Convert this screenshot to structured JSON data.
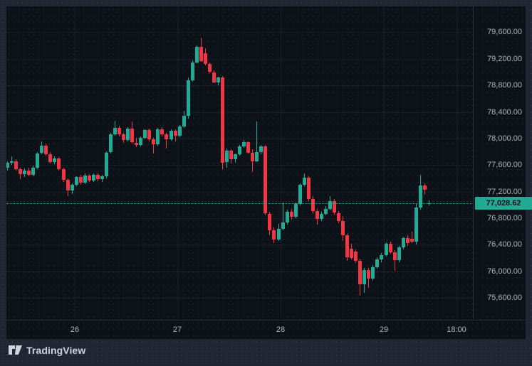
{
  "branding": {
    "logo_text": "TradingView"
  },
  "colors": {
    "up": "#22ab94",
    "down": "#f23645",
    "badge_bg": "#22ab94",
    "badge_text": "#0b0e14",
    "axis_text": "#b2b5be",
    "pane_bg": "#0d1118",
    "outer_bg": "#222633"
  },
  "chart_data": {
    "type": "candlestick",
    "title": "",
    "legend_position": "none",
    "grid": "dotted",
    "ylim": [
      75280,
      79990
    ],
    "y_axis": {
      "ticks": [
        {
          "label": "79,600.00",
          "value": 79600
        },
        {
          "label": "79,200.00",
          "value": 79200
        },
        {
          "label": "78,800.00",
          "value": 78800
        },
        {
          "label": "78,400.00",
          "value": 78400
        },
        {
          "label": "78,000.00",
          "value": 78000
        },
        {
          "label": "77,600.00",
          "value": 77600
        },
        {
          "label": "77,200.00",
          "value": 77200
        },
        {
          "label": "76,800.00",
          "value": 76800
        },
        {
          "label": "76,400.00",
          "value": 76400
        },
        {
          "label": "76,000.00",
          "value": 76000
        },
        {
          "label": "75,600.00",
          "value": 75600
        }
      ]
    },
    "x_axis": {
      "ticks": [
        {
          "label": "26",
          "x": 105
        },
        {
          "label": "27",
          "x": 249
        },
        {
          "label": "28",
          "x": 394
        },
        {
          "label": "29",
          "x": 539
        },
        {
          "label": "18:00",
          "x": 641
        }
      ]
    },
    "price_line": {
      "value": 77028.62,
      "label": "77,028.62"
    },
    "candles": [
      [
        77560,
        77660,
        77520,
        77640
      ],
      [
        77640,
        77730,
        77600,
        77660
      ],
      [
        77660,
        77690,
        77520,
        77540
      ],
      [
        77540,
        77560,
        77390,
        77460
      ],
      [
        77460,
        77550,
        77420,
        77520
      ],
      [
        77520,
        77560,
        77430,
        77450
      ],
      [
        77450,
        77590,
        77430,
        77560
      ],
      [
        77560,
        77800,
        77540,
        77780
      ],
      [
        77780,
        77960,
        77760,
        77890
      ],
      [
        77890,
        77920,
        77740,
        77760
      ],
      [
        77760,
        77800,
        77620,
        77650
      ],
      [
        77650,
        77730,
        77610,
        77700
      ],
      [
        77700,
        77720,
        77520,
        77540
      ],
      [
        77540,
        77560,
        77350,
        77380
      ],
      [
        77380,
        77400,
        77130,
        77220
      ],
      [
        77220,
        77330,
        77160,
        77300
      ],
      [
        77300,
        77430,
        77280,
        77420
      ],
      [
        77420,
        77450,
        77300,
        77330
      ],
      [
        77330,
        77470,
        77310,
        77440
      ],
      [
        77440,
        77460,
        77340,
        77370
      ],
      [
        77370,
        77480,
        77350,
        77450
      ],
      [
        77450,
        77470,
        77360,
        77390
      ],
      [
        77390,
        77450,
        77350,
        77430
      ],
      [
        77430,
        77810,
        77400,
        77790
      ],
      [
        77790,
        78090,
        77770,
        78060
      ],
      [
        78060,
        78270,
        78040,
        78160
      ],
      [
        78160,
        78190,
        78030,
        78060
      ],
      [
        78060,
        78090,
        77940,
        77980
      ],
      [
        77980,
        78170,
        77960,
        78150
      ],
      [
        78150,
        78260,
        77920,
        77940
      ],
      [
        77940,
        78010,
        77870,
        77900
      ],
      [
        77900,
        78030,
        77880,
        78010
      ],
      [
        78010,
        78140,
        77990,
        78130
      ],
      [
        78130,
        78150,
        77960,
        77990
      ],
      [
        77990,
        78010,
        77770,
        77910
      ],
      [
        77910,
        78160,
        77890,
        78140
      ],
      [
        78140,
        78170,
        78030,
        78060
      ],
      [
        78060,
        78080,
        77850,
        77990
      ],
      [
        77990,
        78140,
        77970,
        78120
      ],
      [
        78120,
        78140,
        77950,
        78040
      ],
      [
        78040,
        78200,
        78020,
        78180
      ],
      [
        78180,
        78420,
        78160,
        78340
      ],
      [
        78340,
        78920,
        78300,
        78880
      ],
      [
        78880,
        79180,
        78850,
        79150
      ],
      [
        79150,
        79400,
        79130,
        79380
      ],
      [
        79380,
        79520,
        79150,
        79170
      ],
      [
        79280,
        79360,
        79100,
        79120
      ],
      [
        79120,
        79150,
        78980,
        79000
      ],
      [
        79000,
        79030,
        78830,
        78850
      ],
      [
        78850,
        78930,
        78800,
        78920
      ],
      [
        78920,
        78940,
        77540,
        77640
      ],
      [
        77640,
        77850,
        77560,
        77820
      ],
      [
        77820,
        77840,
        77620,
        77690
      ],
      [
        77690,
        77770,
        77630,
        77760
      ],
      [
        77760,
        77900,
        77740,
        77880
      ],
      [
        77880,
        77975,
        77860,
        77945
      ],
      [
        77945,
        77960,
        77770,
        77790
      ],
      [
        77790,
        77840,
        77490,
        77660
      ],
      [
        77660,
        78260,
        77640,
        77800
      ],
      [
        77800,
        77900,
        77760,
        77880
      ],
      [
        77880,
        77900,
        76840,
        76870
      ],
      [
        76870,
        76900,
        76540,
        76620
      ],
      [
        76620,
        76660,
        76420,
        76480
      ],
      [
        76480,
        76720,
        76460,
        76640
      ],
      [
        76640,
        77040,
        76620,
        76740
      ],
      [
        76740,
        76930,
        76700,
        76900
      ],
      [
        76900,
        76940,
        76780,
        76820
      ],
      [
        76820,
        77040,
        76800,
        77010
      ],
      [
        77010,
        77320,
        76990,
        77300
      ],
      [
        77300,
        77470,
        77280,
        77410
      ],
      [
        77410,
        77430,
        77060,
        77090
      ],
      [
        77090,
        77130,
        76880,
        76910
      ],
      [
        76910,
        76940,
        76700,
        76790
      ],
      [
        76790,
        76900,
        76760,
        76860
      ],
      [
        76860,
        76980,
        76840,
        76940
      ],
      [
        76940,
        77130,
        76920,
        77060
      ],
      [
        77060,
        77090,
        76850,
        76880
      ],
      [
        76880,
        76910,
        76720,
        76760
      ],
      [
        76760,
        76830,
        76460,
        76540
      ],
      [
        76540,
        76570,
        76160,
        76210
      ],
      [
        76340,
        76410,
        76180,
        76200
      ],
      [
        76300,
        76330,
        76120,
        76160
      ],
      [
        76160,
        76190,
        75630,
        75800
      ],
      [
        75800,
        76050,
        75680,
        76020
      ],
      [
        76020,
        76050,
        75750,
        75890
      ],
      [
        75890,
        76090,
        75860,
        76060
      ],
      [
        76060,
        76210,
        76040,
        76180
      ],
      [
        76180,
        76280,
        76140,
        76240
      ],
      [
        76240,
        76440,
        76220,
        76420
      ],
      [
        76420,
        76450,
        76260,
        76290
      ],
      [
        76290,
        76320,
        76010,
        76170
      ],
      [
        76170,
        76380,
        76140,
        76360
      ],
      [
        76360,
        76520,
        76330,
        76500
      ],
      [
        76500,
        76540,
        76380,
        76430
      ],
      [
        76490,
        76600,
        76420,
        76450
      ],
      [
        76450,
        77010,
        76400,
        76960
      ],
      [
        76960,
        77450,
        76930,
        77290
      ],
      [
        77290,
        77330,
        77150,
        77230
      ],
      [
        77020,
        77070,
        76990,
        77030
      ]
    ]
  }
}
